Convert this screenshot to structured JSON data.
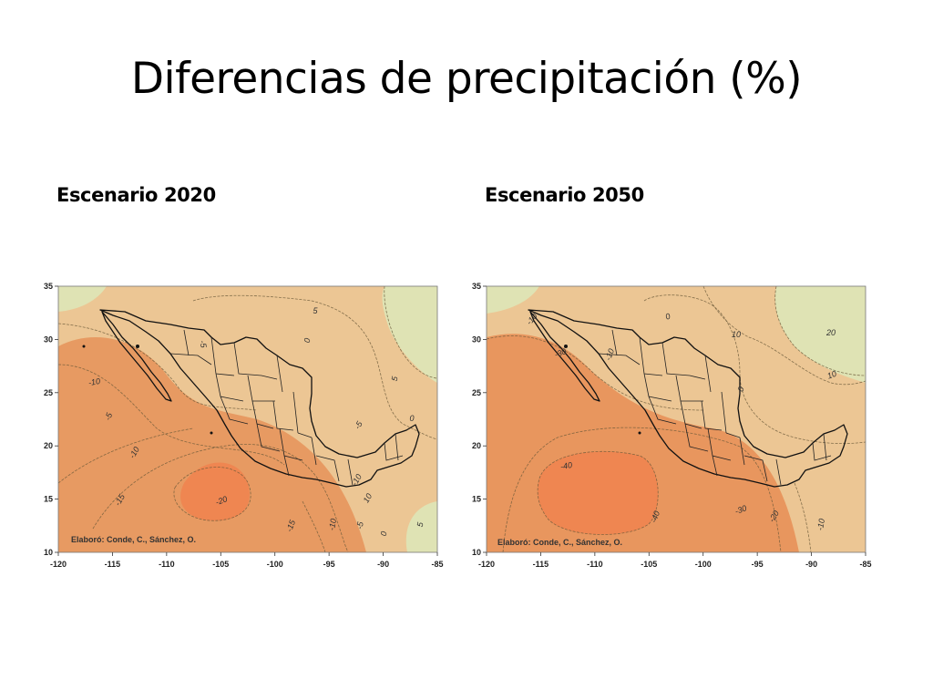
{
  "slide": {
    "title": "Diferencias de precipitación (%)"
  },
  "maps": [
    {
      "heading": "Escenario 2020",
      "credit": "Elaboró: Conde, C., Sánchez, O.",
      "colors": {
        "wet": "#dfe3b4",
        "neutral": "#ecc694",
        "dry": "#e79a62",
        "driest": "#ef8651"
      },
      "x_ticks": [
        "-120",
        "-115",
        "-110",
        "-105",
        "-100",
        "-95",
        "-90",
        "-85"
      ],
      "y_ticks": [
        "35",
        "30",
        "25",
        "20",
        "15",
        "10"
      ],
      "contour_labels": [
        "-10",
        "-5",
        "-5",
        "-10",
        "-15",
        "-20",
        "-15",
        "-10",
        "-5",
        "0",
        "0",
        "0",
        "5",
        "5",
        "-5",
        "5",
        "-10",
        "10"
      ]
    },
    {
      "heading": "Escenario 2050",
      "credit": "Elaboró: Conde, C., Sánchez, O.",
      "colors": {
        "wet": "#dfe3b4",
        "neutral": "#ecc694",
        "dry": "#e8965e",
        "driest": "#ef8651"
      },
      "x_ticks": [
        "-120",
        "-115",
        "-110",
        "-105",
        "-100",
        "-95",
        "-90",
        "-85"
      ],
      "y_ticks": [
        "35",
        "30",
        "25",
        "20",
        "15",
        "10"
      ],
      "contour_labels": [
        "-10",
        "0",
        "-10",
        "-30",
        "10",
        "20",
        "10",
        "0",
        "-40",
        "-40",
        "-30",
        "-20",
        "-10"
      ]
    }
  ]
}
